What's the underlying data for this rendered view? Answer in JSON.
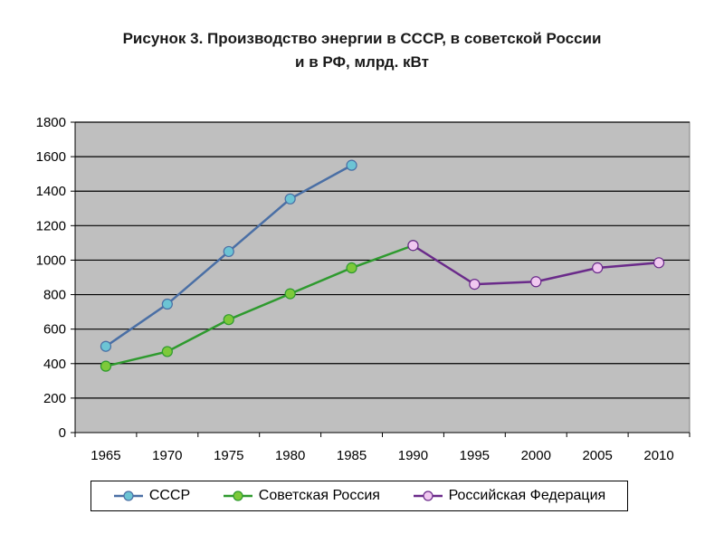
{
  "chart_data": {
    "type": "line",
    "title_lines": [
      "Рисунок  3. Производство энергии в СССР, в советской России",
      "и в РФ, млрд. кВт"
    ],
    "x": [
      1965,
      1970,
      1975,
      1980,
      1985,
      1990,
      1995,
      2000,
      2005,
      2010
    ],
    "x_tick_labels": [
      "1965",
      "1970",
      "1975",
      "1980",
      "1985",
      "1990",
      "1995",
      "2000",
      "2005",
      "2010"
    ],
    "ylim": [
      0,
      1800
    ],
    "y_ticks": [
      0,
      200,
      400,
      600,
      800,
      1000,
      1200,
      1400,
      1600,
      1800
    ],
    "y_tick_labels": [
      "0",
      "200",
      "400",
      "600",
      "800",
      "1000",
      "1200",
      "1400",
      "1600",
      "1800"
    ],
    "grid": "horizontal",
    "plot_background": "#bfbfbf",
    "legend_position": "bottom",
    "series": [
      {
        "name": "СССР",
        "color": "#4a6fa5",
        "marker_fill": "#6cc4d4",
        "points": [
          [
            1965,
            500
          ],
          [
            1970,
            745
          ],
          [
            1975,
            1050
          ],
          [
            1980,
            1355
          ],
          [
            1985,
            1550
          ]
        ]
      },
      {
        "name": "Советская Россия",
        "color": "#2e9a2e",
        "marker_fill": "#7dc93a",
        "points": [
          [
            1965,
            385
          ],
          [
            1970,
            470
          ],
          [
            1975,
            655
          ],
          [
            1980,
            805
          ],
          [
            1985,
            955
          ],
          [
            1990,
            1085
          ]
        ]
      },
      {
        "name": "Российская Федерация",
        "color": "#6a2a8a",
        "marker_fill": "#f0c8f0",
        "points": [
          [
            1990,
            1085
          ],
          [
            1995,
            860
          ],
          [
            2000,
            875
          ],
          [
            2005,
            955
          ],
          [
            2010,
            985
          ]
        ]
      }
    ]
  }
}
